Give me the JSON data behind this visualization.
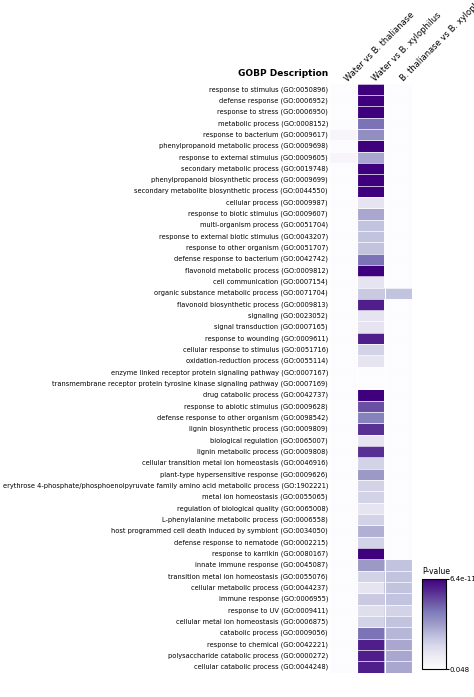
{
  "col_labels": [
    "Water vs B. thalianase",
    "Water vs B. xylophilus",
    "B. thalianase vs B. xylophilus"
  ],
  "row_labels": [
    "response to stimulus (GO:0050896)",
    "defense response (GO:0006952)",
    "response to stress (GO:0006950)",
    "metabolic process (GO:0008152)",
    "response to bacterium (GO:0009617)",
    "phenylpropanoid metabolic process (GO:0009698)",
    "response to external stimulus (GO:0009605)",
    "secondary metabolic process (GO:0019748)",
    "phenylpropanoid biosynthetic process (GO:0009699)",
    "secondary metabolite biosynthetic process (GO:0044550)",
    "cellular process (GO:0009987)",
    "response to biotic stimulus (GO:0009607)",
    "multi-organism process (GO:0051704)",
    "response to external biotic stimulus (GO:0043207)",
    "response to other organism (GO:0051707)",
    "defense response to bacterium (GO:0042742)",
    "flavonoid metabolic process (GO:0009812)",
    "cell communication (GO:0007154)",
    "organic substance metabolic process (GO:0071704)",
    "flavonoid biosynthetic process (GO:0009813)",
    "signaling (GO:0023052)",
    "signal transduction (GO:0007165)",
    "response to wounding (GO:0009611)",
    "cellular response to stimulus (GO:0051716)",
    "oxidation-reduction process (GO:0055114)",
    "enzyme linked receptor protein signaling pathway (GO:0007167)",
    "transmembrane receptor protein tyrosine kinase signaling pathway (GO:0007169)",
    "drug catabolic process (GO:0042737)",
    "response to abiotic stimulus (GO:0009628)",
    "defense response to other organism (GO:0098542)",
    "lignin biosynthetic process (GO:0009809)",
    "biological regulation (GO:0065007)",
    "lignin metabolic process (GO:0009808)",
    "cellular transition metal ion homeostasis (GO:0046916)",
    "plant-type hypersensitive response (GO:0009626)",
    "erythrose 4-phosphate/phosphoenolpyruvate family amino acid metabolic process (GO:1902221)",
    "metal ion homeostasis (GO:0055065)",
    "regulation of biological quality (GO:0065008)",
    "L-phenylalanine metabolic process (GO:0006558)",
    "host programmed cell death induced by symbiont (GO:0034050)",
    "defense response to nematode (GO:0002215)",
    "response to karrikin (GO:0080167)",
    "innate immune response (GO:0045087)",
    "transition metal ion homeostasis (GO:0055076)",
    "cellular metabolic process (GO:0044237)",
    "immune response (GO:0006955)",
    "response to UV (GO:0009411)",
    "cellular metal ion homeostasis (GO:0006875)",
    "catabolic process (GO:0009056)",
    "response to chemical (GO:0042221)",
    "polysaccharide catabolic process (GO:0000272)",
    "cellular catabolic process (GO:0044248)"
  ],
  "heatmap_data": [
    [
      0.0,
      1.0,
      0.0
    ],
    [
      0.0,
      1.0,
      0.0
    ],
    [
      0.0,
      1.0,
      0.0
    ],
    [
      0.0,
      0.65,
      0.0
    ],
    [
      0.05,
      0.55,
      0.0
    ],
    [
      0.0,
      1.0,
      0.0
    ],
    [
      0.05,
      0.45,
      0.0
    ],
    [
      0.0,
      1.0,
      0.0
    ],
    [
      0.0,
      1.0,
      0.0
    ],
    [
      0.0,
      1.0,
      0.0
    ],
    [
      0.0,
      0.18,
      0.0
    ],
    [
      0.0,
      0.45,
      0.0
    ],
    [
      0.0,
      0.35,
      0.0
    ],
    [
      0.0,
      0.35,
      0.0
    ],
    [
      0.0,
      0.35,
      0.0
    ],
    [
      0.0,
      0.65,
      0.0
    ],
    [
      0.0,
      1.0,
      0.0
    ],
    [
      0.0,
      0.18,
      0.0
    ],
    [
      0.0,
      0.32,
      0.35
    ],
    [
      0.0,
      0.9,
      0.0
    ],
    [
      0.0,
      0.18,
      0.0
    ],
    [
      0.0,
      0.18,
      0.0
    ],
    [
      0.0,
      0.9,
      0.0
    ],
    [
      0.0,
      0.28,
      0.0
    ],
    [
      0.0,
      0.18,
      0.0
    ],
    [
      0.0,
      0.0,
      0.0
    ],
    [
      0.0,
      0.0,
      0.0
    ],
    [
      0.0,
      1.0,
      0.0
    ],
    [
      0.0,
      0.75,
      0.0
    ],
    [
      0.0,
      0.6,
      0.0
    ],
    [
      0.0,
      0.85,
      0.0
    ],
    [
      0.0,
      0.18,
      0.0
    ],
    [
      0.0,
      0.85,
      0.0
    ],
    [
      0.0,
      0.28,
      0.0
    ],
    [
      0.0,
      0.5,
      0.0
    ],
    [
      0.0,
      0.28,
      0.0
    ],
    [
      0.0,
      0.28,
      0.0
    ],
    [
      0.0,
      0.18,
      0.0
    ],
    [
      0.0,
      0.28,
      0.0
    ],
    [
      0.0,
      0.42,
      0.0
    ],
    [
      0.0,
      0.28,
      0.0
    ],
    [
      0.0,
      1.0,
      0.0
    ],
    [
      0.0,
      0.5,
      0.35
    ],
    [
      0.0,
      0.28,
      0.35
    ],
    [
      0.0,
      0.18,
      0.35
    ],
    [
      0.0,
      0.32,
      0.35
    ],
    [
      0.0,
      0.22,
      0.28
    ],
    [
      0.0,
      0.28,
      0.35
    ],
    [
      0.0,
      0.65,
      0.4
    ],
    [
      0.0,
      0.9,
      0.45
    ],
    [
      0.0,
      0.9,
      0.45
    ],
    [
      0.0,
      0.9,
      0.45
    ]
  ],
  "colormap": "Purples",
  "background_color": "#ffffff",
  "row_label_fontsize": 4.8,
  "col_label_fontsize": 6.0,
  "header_fontsize": 6.5,
  "legend_title": "P-value",
  "legend_min_label": "6.4e-11",
  "legend_max_label": "0.048",
  "gobp_label": "GOBP Description"
}
